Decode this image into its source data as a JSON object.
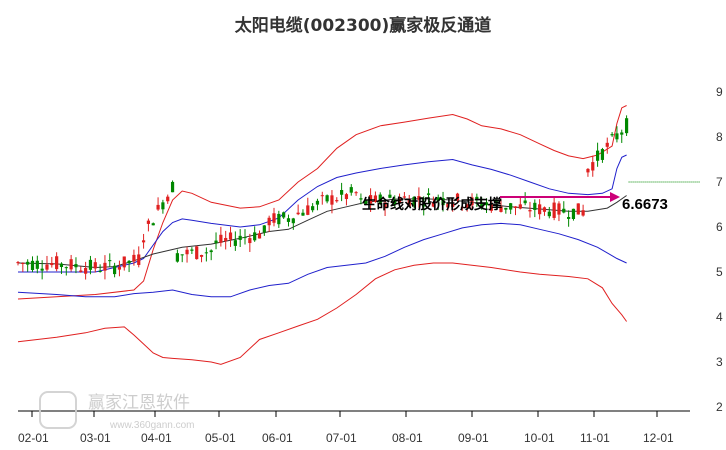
{
  "chart_data": {
    "type": "candlestick",
    "title": "太阳电缆(002300)赢家极反通道",
    "x_ticks": [
      "02-01",
      "03-01",
      "04-01",
      "05-01",
      "06-01",
      "07-01",
      "08-01",
      "09-01",
      "10-01",
      "11-01",
      "12-01"
    ],
    "y_ticks": [
      2,
      3,
      4,
      5,
      6,
      7,
      8,
      9
    ],
    "ylim": [
      2,
      9.3
    ],
    "grid": false,
    "annotation": {
      "label": "生命线对股价形成支撑",
      "value": "6.6673",
      "y": 6.6673
    },
    "last_price": 7.0,
    "series": [
      {
        "name": "",
        "color": "#e02020",
        "points": [
          [
            0,
            4.4
          ],
          [
            8,
            4.45
          ],
          [
            16,
            4.5
          ],
          [
            24,
            4.6
          ],
          [
            26,
            4.8
          ],
          [
            28,
            5.5
          ],
          [
            30,
            6.1
          ],
          [
            32,
            6.6
          ],
          [
            34,
            6.8
          ],
          [
            36,
            6.75
          ],
          [
            40,
            6.55
          ],
          [
            46,
            6.42
          ],
          [
            50,
            6.45
          ],
          [
            54,
            6.6
          ],
          [
            58,
            7.0
          ],
          [
            62,
            7.3
          ],
          [
            66,
            7.75
          ],
          [
            70,
            8.05
          ],
          [
            75,
            8.25
          ],
          [
            80,
            8.33
          ],
          [
            85,
            8.42
          ],
          [
            90,
            8.5
          ],
          [
            93,
            8.4
          ],
          [
            96,
            8.25
          ],
          [
            100,
            8.18
          ],
          [
            104,
            8.05
          ],
          [
            108,
            7.85
          ],
          [
            111,
            7.7
          ],
          [
            114,
            7.58
          ],
          [
            117,
            7.52
          ],
          [
            120,
            7.6
          ],
          [
            123,
            7.8
          ],
          [
            124,
            8.3
          ],
          [
            125,
            8.65
          ],
          [
            126,
            8.7
          ]
        ]
      },
      {
        "name": "",
        "color": "#2020cc",
        "points": [
          [
            0,
            5.0
          ],
          [
            16,
            5.0
          ],
          [
            24,
            5.2
          ],
          [
            26,
            5.3
          ],
          [
            28,
            5.6
          ],
          [
            30,
            5.9
          ],
          [
            32,
            6.1
          ],
          [
            34,
            6.18
          ],
          [
            36,
            6.15
          ],
          [
            40,
            6.08
          ],
          [
            46,
            6.0
          ],
          [
            50,
            6.05
          ],
          [
            54,
            6.2
          ],
          [
            58,
            6.6
          ],
          [
            62,
            6.9
          ],
          [
            66,
            7.1
          ],
          [
            70,
            7.2
          ],
          [
            75,
            7.3
          ],
          [
            80,
            7.38
          ],
          [
            85,
            7.45
          ],
          [
            90,
            7.5
          ],
          [
            94,
            7.38
          ],
          [
            98,
            7.28
          ],
          [
            102,
            7.15
          ],
          [
            106,
            7.0
          ],
          [
            110,
            6.85
          ],
          [
            114,
            6.75
          ],
          [
            118,
            6.72
          ],
          [
            121,
            6.75
          ],
          [
            123,
            6.85
          ],
          [
            124,
            7.3
          ],
          [
            125,
            7.55
          ],
          [
            126,
            7.6
          ]
        ]
      },
      {
        "name": "",
        "color": "#333333",
        "points": [
          [
            0,
            5.2
          ],
          [
            8,
            5.18
          ],
          [
            16,
            5.1
          ],
          [
            20,
            5.12
          ],
          [
            24,
            5.25
          ],
          [
            28,
            5.4
          ],
          [
            34,
            5.55
          ],
          [
            40,
            5.62
          ],
          [
            46,
            5.75
          ],
          [
            52,
            5.9
          ],
          [
            56,
            5.95
          ],
          [
            60,
            6.15
          ],
          [
            64,
            6.35
          ],
          [
            68,
            6.45
          ],
          [
            72,
            6.55
          ],
          [
            78,
            6.62
          ],
          [
            84,
            6.63
          ],
          [
            90,
            6.6
          ],
          [
            96,
            6.52
          ],
          [
            102,
            6.45
          ],
          [
            108,
            6.4
          ],
          [
            114,
            6.35
          ],
          [
            118,
            6.35
          ],
          [
            122,
            6.42
          ],
          [
            124,
            6.55
          ],
          [
            126,
            6.7
          ]
        ]
      },
      {
        "name": "",
        "color": "#2020cc",
        "points": [
          [
            0,
            4.55
          ],
          [
            8,
            4.5
          ],
          [
            14,
            4.45
          ],
          [
            20,
            4.45
          ],
          [
            24,
            4.52
          ],
          [
            28,
            4.55
          ],
          [
            32,
            4.6
          ],
          [
            36,
            4.5
          ],
          [
            40,
            4.45
          ],
          [
            44,
            4.45
          ],
          [
            48,
            4.6
          ],
          [
            52,
            4.7
          ],
          [
            56,
            4.75
          ],
          [
            60,
            4.95
          ],
          [
            64,
            5.1
          ],
          [
            68,
            5.15
          ],
          [
            72,
            5.2
          ],
          [
            76,
            5.35
          ],
          [
            80,
            5.55
          ],
          [
            84,
            5.72
          ],
          [
            88,
            5.85
          ],
          [
            92,
            5.98
          ],
          [
            96,
            6.05
          ],
          [
            100,
            6.08
          ],
          [
            104,
            6.05
          ],
          [
            108,
            5.95
          ],
          [
            112,
            5.85
          ],
          [
            116,
            5.72
          ],
          [
            120,
            5.55
          ],
          [
            124,
            5.3
          ],
          [
            126,
            5.2
          ]
        ]
      },
      {
        "name": "",
        "color": "#e02020",
        "points": [
          [
            0,
            3.45
          ],
          [
            8,
            3.55
          ],
          [
            14,
            3.65
          ],
          [
            18,
            3.75
          ],
          [
            22,
            3.78
          ],
          [
            24,
            3.6
          ],
          [
            26,
            3.4
          ],
          [
            28,
            3.2
          ],
          [
            30,
            3.1
          ],
          [
            32,
            3.08
          ],
          [
            36,
            3.05
          ],
          [
            40,
            3.0
          ],
          [
            42,
            2.95
          ],
          [
            46,
            3.1
          ],
          [
            50,
            3.5
          ],
          [
            54,
            3.65
          ],
          [
            58,
            3.8
          ],
          [
            62,
            3.95
          ],
          [
            66,
            4.2
          ],
          [
            70,
            4.5
          ],
          [
            74,
            4.85
          ],
          [
            78,
            5.05
          ],
          [
            82,
            5.15
          ],
          [
            86,
            5.2
          ],
          [
            90,
            5.2
          ],
          [
            94,
            5.15
          ],
          [
            98,
            5.1
          ],
          [
            104,
            5.0
          ],
          [
            108,
            4.95
          ],
          [
            114,
            4.9
          ],
          [
            118,
            4.85
          ],
          [
            121,
            4.65
          ],
          [
            123,
            4.3
          ],
          [
            125,
            4.05
          ],
          [
            126,
            3.9
          ]
        ]
      }
    ]
  }
}
